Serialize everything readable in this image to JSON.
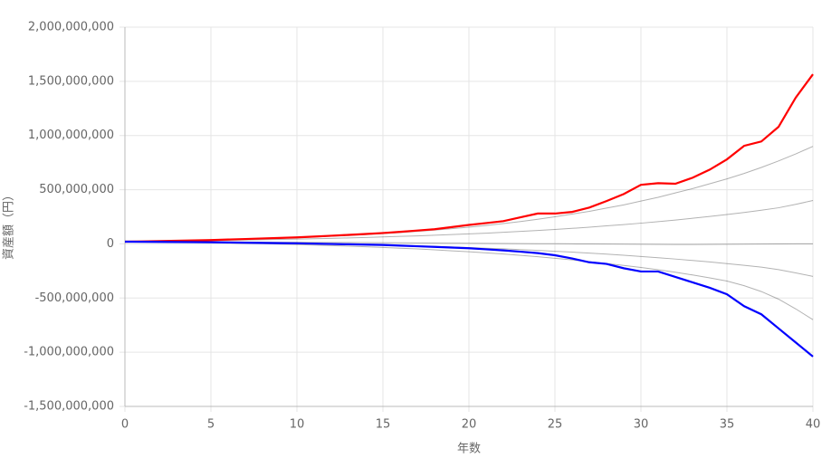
{
  "chart_data": {
    "type": "line",
    "xlabel": "年数",
    "ylabel": "資産額（円）",
    "x": [
      0,
      1,
      2,
      3,
      4,
      5,
      6,
      7,
      8,
      9,
      10,
      11,
      12,
      13,
      14,
      15,
      16,
      17,
      18,
      19,
      20,
      21,
      22,
      23,
      24,
      25,
      26,
      27,
      28,
      29,
      30,
      31,
      32,
      33,
      34,
      35,
      36,
      37,
      38,
      39,
      40
    ],
    "xlim": [
      0,
      40
    ],
    "xticks": [
      0,
      5,
      10,
      15,
      20,
      25,
      30,
      35,
      40
    ],
    "ylim": [
      -1500000000,
      2000000000
    ],
    "yticks": [
      {
        "value": -1500000000,
        "label": "-1,500,000,000"
      },
      {
        "value": -1000000000,
        "label": "-1,000,000,000"
      },
      {
        "value": -500000000,
        "label": "-500,000,000"
      },
      0,
      {
        "value": 500000000,
        "label": "500,000,000"
      },
      {
        "value": 1000000000,
        "label": "1,000,000,000"
      },
      {
        "value": 1500000000,
        "label": "1,500,000,000"
      },
      {
        "value": 2000000000,
        "label": "2,000,000,000"
      }
    ],
    "grid": true,
    "series": [
      {
        "color": "rgba(0,0,0,0.3)",
        "values": [
          20000000.0,
          22000000.0,
          25000000.0,
          28000000.0,
          31000000.0,
          34000000.0,
          38000000.0,
          42000000.0,
          47000000.0,
          52000000.0,
          57000000.0,
          63000000.0,
          70000000.0,
          77000000.0,
          85000000.0,
          94000000.0,
          104000000.0,
          115000000.0,
          127000000.0,
          140000000.0,
          154000000.0,
          170000000.0,
          187000000.0,
          206000000.0,
          227000000.0,
          250000000.0,
          275000000.0,
          300000000.0,
          330000000.0,
          360000000.0,
          395000000.0,
          430000000.0,
          470000000.0,
          510000000.0,
          555000000.0,
          600000000.0,
          650000000.0,
          705000000.0,
          765000000.0,
          830000000.0,
          900000000.0
        ]
      },
      {
        "color": "rgba(0,0,0,0.3)",
        "values": [
          20000000.0,
          22000000.0,
          24000000.0,
          26000000.0,
          28000000.0,
          30000000.0,
          32000000.0,
          35000000.0,
          38000000.0,
          41000000.0,
          44000000.0,
          47000000.0,
          51000000.0,
          55000000.0,
          59000000.0,
          64000000.0,
          69000000.0,
          74000000.0,
          80000000.0,
          86000000.0,
          92000000.0,
          99000000.0,
          107000000.0,
          115000000.0,
          124000000.0,
          133000000.0,
          143000000.0,
          154000000.0,
          166000000.0,
          178000000.0,
          191000000.0,
          205000000.0,
          220000000.0,
          236000000.0,
          253000000.0,
          271000000.0,
          290000000.0,
          311000000.0,
          333000000.0,
          365000000.0,
          400000000.0
        ]
      },
      {
        "color": "rgba(0,0,0,0.3)",
        "values": [
          20000000.0,
          20000000.0,
          19000000.0,
          19000000.0,
          18000000.0,
          18000000.0,
          17000000.0,
          17000000.0,
          16000000.0,
          15000000.0,
          15000000.0,
          14000000.0,
          13000000.0,
          13000000.0,
          12000000.0,
          11000000.0,
          10000000.0,
          9000000.0,
          8000000.0,
          7000000.0,
          6000000.0,
          5000000.0,
          4000000.0,
          3000000.0,
          2000000.0,
          1000000.0,
          0,
          -1000000.0,
          -2000000.0,
          -3000000.0,
          -4000000.0,
          -5000000.0,
          -6000000.0,
          -6000000.0,
          -5000000.0,
          -4000000.0,
          -3000000.0,
          -2000000.0,
          -1000000.0,
          0,
          0
        ]
      },
      {
        "color": "rgba(0,0,0,0.3)",
        "values": [
          20000000.0,
          19000000.0,
          18000000.0,
          17000000.0,
          16000000.0,
          15000000.0,
          13000000.0,
          11000000.0,
          9000000.0,
          7000000.0,
          5000000.0,
          2000000.0,
          -1000000.0,
          -4000000.0,
          -7000000.0,
          -11000000.0,
          -15000000.0,
          -19000000.0,
          -24000000.0,
          -29000000.0,
          -34000000.0,
          -40000000.0,
          -46000000.0,
          -53000000.0,
          -60000000.0,
          -68000000.0,
          -76000000.0,
          -85000000.0,
          -95000000.0,
          -105000000.0,
          -116000000.0,
          -128000000.0,
          -140000000.0,
          -153000000.0,
          -167000000.0,
          -182000000.0,
          -198000000.0,
          -215000000.0,
          -238000000.0,
          -268000000.0,
          -300000000.0
        ]
      },
      {
        "color": "rgba(0,0,0,0.3)",
        "values": [
          20000000.0,
          18000000.0,
          16000000.0,
          14000000.0,
          12000000.0,
          10000000.0,
          7000000.0,
          4000000.0,
          1000000.0,
          -3000000.0,
          -7000000.0,
          -11000000.0,
          -16000000.0,
          -21000000.0,
          -27000000.0,
          -33000000.0,
          -40000000.0,
          -47000000.0,
          -55000000.0,
          -64000000.0,
          -73000000.0,
          -83000000.0,
          -94000000.0,
          -106000000.0,
          -119000000.0,
          -133000000.0,
          -148000000.0,
          -164000000.0,
          -181000000.0,
          -199000000.0,
          -218000000.0,
          -239000000.0,
          -262000000.0,
          -287000000.0,
          -314000000.0,
          -343000000.0,
          -386000000.0,
          -440000000.0,
          -510000000.0,
          -600000000.0,
          -700000000.0
        ]
      },
      {
        "color": "#ff0000",
        "values": [
          20000000.0,
          23000000.0,
          26000000.0,
          29000000.0,
          32000000.0,
          35000000.0,
          40000000.0,
          45000000.0,
          50000000.0,
          55000000.0,
          60000000.0,
          67000000.0,
          75000000.0,
          83000000.0,
          91000000.0,
          100000000.0,
          111000000.0,
          123000000.0,
          135000000.0,
          155000000.0,
          175000000.0,
          192000000.0,
          210000000.0,
          245000000.0,
          280000000.0,
          280000000.0,
          295000000.0,
          335000000.0,
          395000000.0,
          460000000.0,
          545000000.0,
          560000000.0,
          555000000.0,
          610000000.0,
          685000000.0,
          780000000.0,
          905000000.0,
          945000000.0,
          1080000000.0,
          1350000000.0,
          1565000000.0
        ]
      },
      {
        "color": "#0000ff",
        "values": [
          20000000.0,
          19000000.0,
          18000000.0,
          17000000.0,
          16000000.0,
          15000000.0,
          13000000.0,
          11000000.0,
          9000000.0,
          7000000.0,
          5000000.0,
          2000000.0,
          -1000000.0,
          -4000000.0,
          -7000000.0,
          -10000000.0,
          -16000000.0,
          -22000000.0,
          -28000000.0,
          -34000000.0,
          -40000000.0,
          -50000000.0,
          -60000000.0,
          -72000000.0,
          -85000000.0,
          -105000000.0,
          -135000000.0,
          -170000000.0,
          -185000000.0,
          -225000000.0,
          -255000000.0,
          -255000000.0,
          -305000000.0,
          -355000000.0,
          -405000000.0,
          -465000000.0,
          -575000000.0,
          -650000000.0,
          -780000000.0,
          -910000000.0,
          -1040000000.0
        ]
      }
    ]
  }
}
